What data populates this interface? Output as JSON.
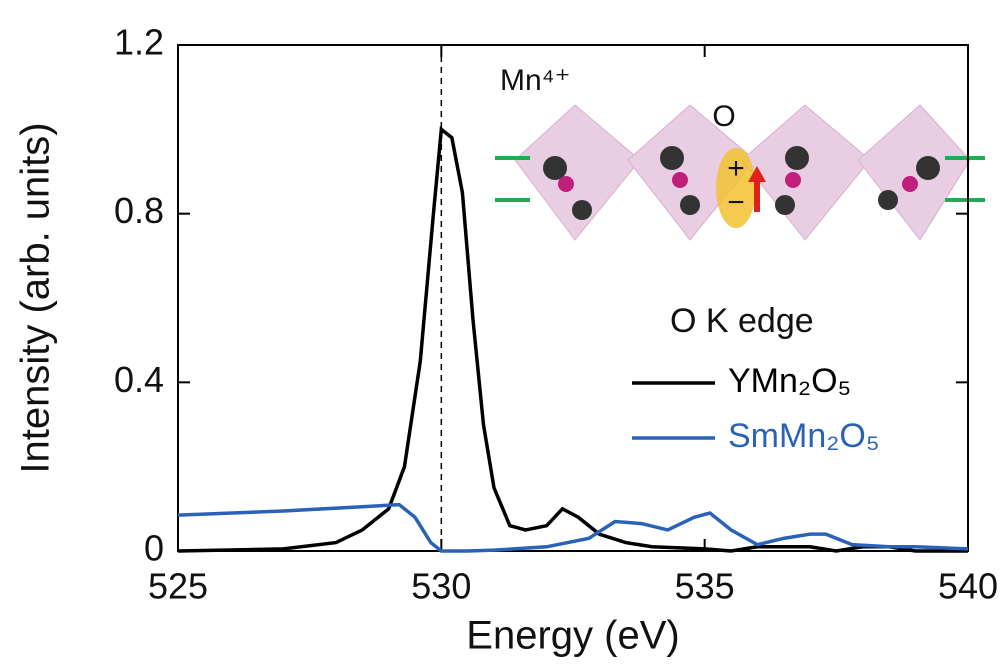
{
  "chart_data": {
    "type": "line",
    "xlabel": "Energy (eV)",
    "ylabel": "Intensity (arb. units)",
    "xlim": [
      525,
      540
    ],
    "xticks": [
      525,
      530,
      535,
      540
    ],
    "ylim": [
      0,
      1.2
    ],
    "yticks": [
      0,
      0.4,
      0.8,
      1.2
    ],
    "vline": 530,
    "legend_title": "O K edge",
    "series": [
      {
        "name": "YMn₂O₅",
        "color": "#000000",
        "x": [
          525,
          527,
          528,
          528.5,
          529,
          529.3,
          529.6,
          529.85,
          530.0,
          530.2,
          530.4,
          530.6,
          530.8,
          531.0,
          531.3,
          531.6,
          532,
          532.3,
          532.6,
          533,
          533.5,
          534,
          535,
          535.5,
          536,
          537,
          537.5,
          538,
          538.5,
          539,
          540
        ],
        "values": [
          0,
          0.005,
          0.02,
          0.05,
          0.1,
          0.2,
          0.45,
          0.8,
          1.0,
          0.98,
          0.85,
          0.55,
          0.3,
          0.15,
          0.06,
          0.05,
          0.06,
          0.1,
          0.08,
          0.04,
          0.02,
          0.01,
          0.005,
          0,
          0.01,
          0.01,
          0,
          0.01,
          0.01,
          0,
          0
        ]
      },
      {
        "name": "SmMn₂O₅",
        "color": "#2a62b8",
        "x": [
          525,
          527,
          528.5,
          529.2,
          529.5,
          529.8,
          530,
          530.5,
          531,
          532,
          532.8,
          533.3,
          533.8,
          534.3,
          534.8,
          535.1,
          535.5,
          536,
          536.5,
          537,
          537.3,
          537.8,
          538.5,
          539,
          540
        ],
        "values": [
          0.085,
          0.095,
          0.105,
          0.11,
          0.08,
          0.02,
          0,
          0,
          0.002,
          0.01,
          0.03,
          0.07,
          0.065,
          0.05,
          0.08,
          0.09,
          0.05,
          0.015,
          0.03,
          0.04,
          0.04,
          0.015,
          0.01,
          0.01,
          0.005
        ]
      }
    ],
    "inset_labels": [
      "Mn⁴⁺",
      "O",
      "+",
      "−"
    ]
  }
}
